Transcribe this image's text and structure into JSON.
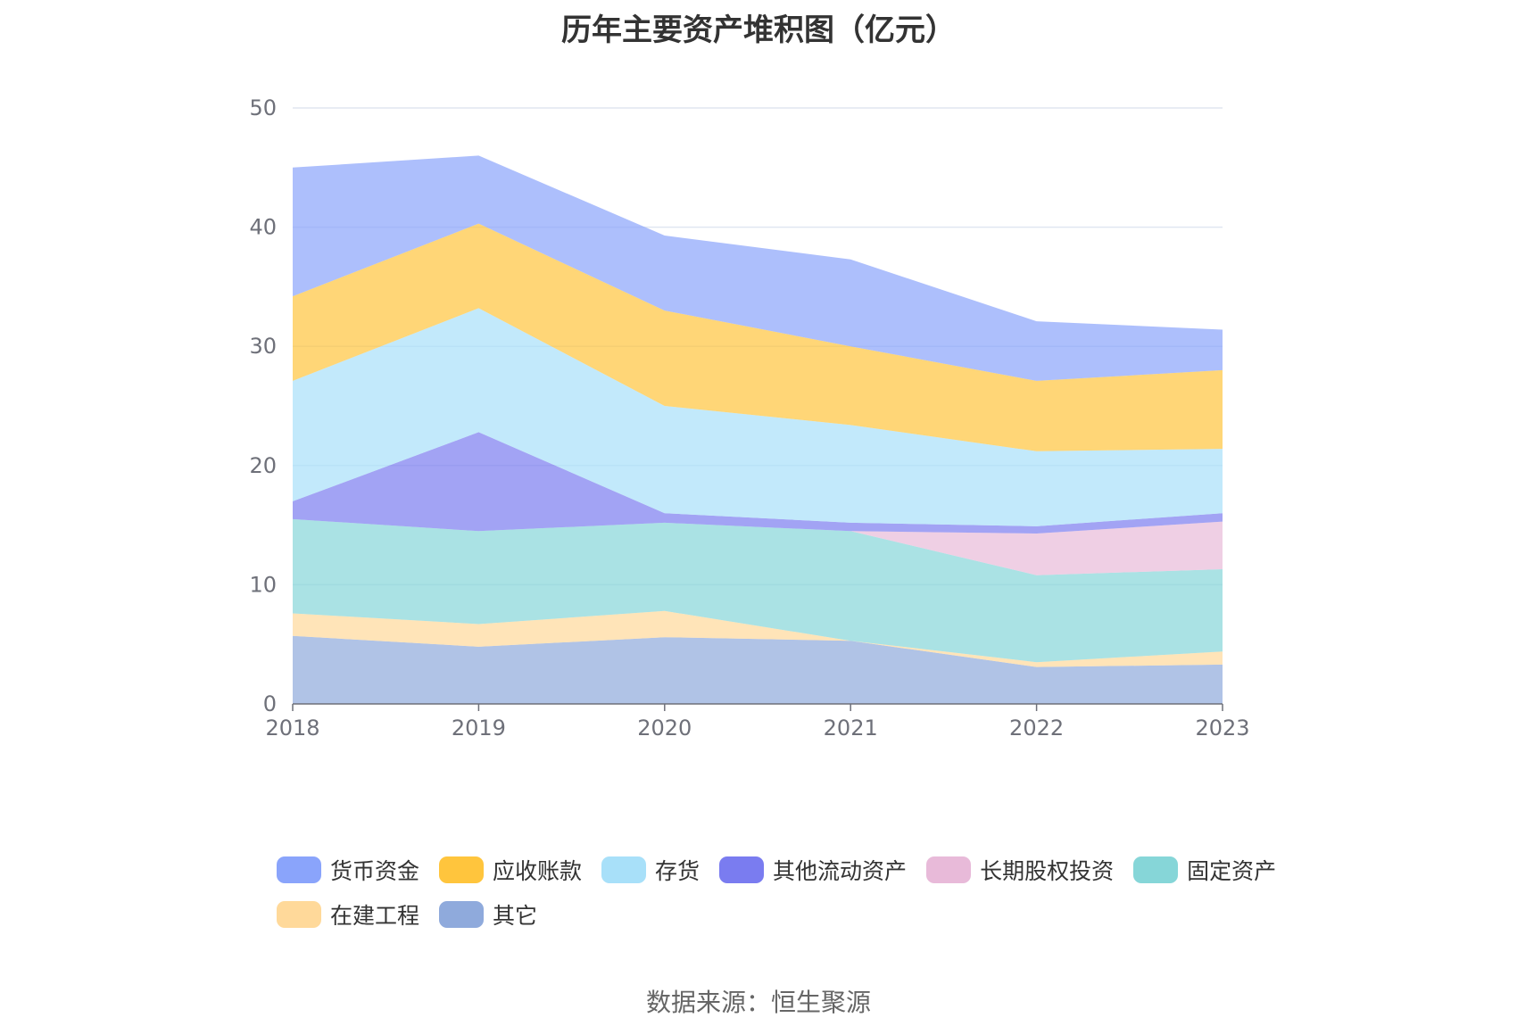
{
  "chart_data": {
    "type": "area",
    "stacked": true,
    "title": "历年主要资产堆积图（亿元）",
    "source": "数据来源：恒生聚源",
    "x": [
      "2018",
      "2019",
      "2020",
      "2021",
      "2022",
      "2023"
    ],
    "ylim": [
      0,
      50
    ],
    "yticks": [
      "0",
      "10",
      "20",
      "30",
      "40",
      "50"
    ],
    "series": [
      {
        "name": "其它",
        "color": "#8faadc",
        "values": [
          5.7,
          4.8,
          5.6,
          5.3,
          3.1,
          3.3
        ]
      },
      {
        "name": "在建工程",
        "color": "#ffd99a",
        "values": [
          1.9,
          1.9,
          2.2,
          0.0,
          0.4,
          1.1
        ]
      },
      {
        "name": "固定资产",
        "color": "#86d6d8",
        "values": [
          7.9,
          7.8,
          7.4,
          9.2,
          7.3,
          6.9
        ]
      },
      {
        "name": "长期股权投资",
        "color": "#e8bad9",
        "values": [
          0.0,
          0.0,
          0.0,
          0.0,
          3.5,
          4.0
        ]
      },
      {
        "name": "其他流动资产",
        "color": "#7a7cf0",
        "values": [
          1.5,
          8.3,
          0.8,
          0.7,
          0.6,
          0.7
        ]
      },
      {
        "name": "存货",
        "color": "#a8e0f9",
        "values": [
          10.1,
          10.4,
          9.0,
          8.2,
          6.3,
          5.4
        ]
      },
      {
        "name": "应收账款",
        "color": "#ffc53d",
        "values": [
          7.1,
          7.1,
          8.0,
          6.6,
          5.9,
          6.6
        ]
      },
      {
        "name": "货币资金",
        "color": "#8aa4fb",
        "values": [
          10.8,
          5.7,
          6.3,
          7.3,
          5.0,
          3.4
        ]
      }
    ],
    "legend_order": [
      "货币资金",
      "应收账款",
      "存货",
      "其他流动资产",
      "长期股权投资",
      "固定资产",
      "在建工程",
      "其它"
    ]
  }
}
